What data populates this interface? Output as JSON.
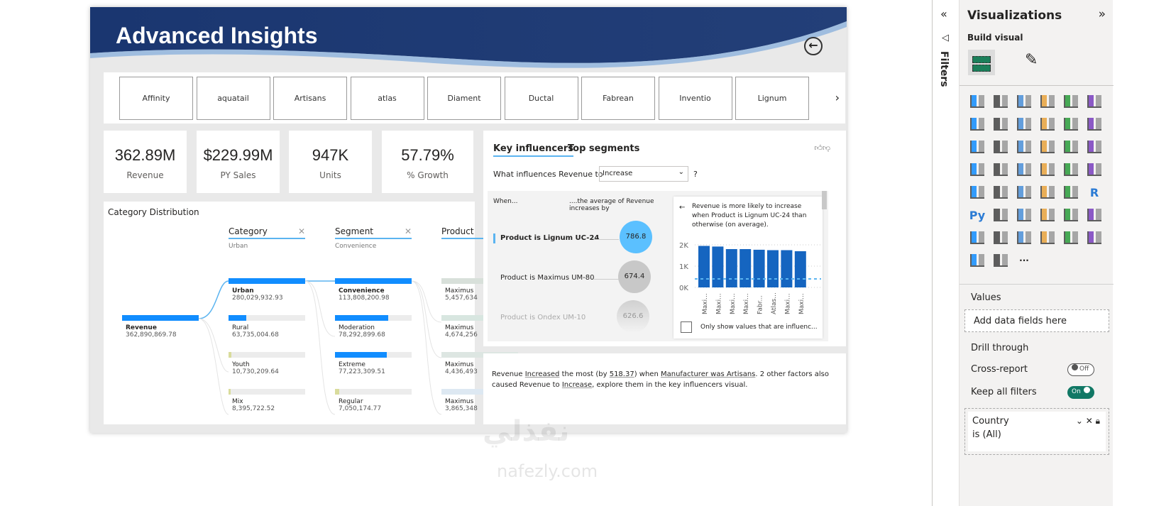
{
  "report": {
    "title": "Advanced Insights",
    "back_icon": "back-arrow-icon",
    "header_color": "#1f3a6e"
  },
  "logos": [
    "Affinity",
    "aquatail",
    "Artisans",
    "atlas",
    "Diament",
    "Ductal",
    "Fabrean",
    "Inventio",
    "Lignum"
  ],
  "kpis": [
    {
      "value": "362.89M",
      "label": "Revenue"
    },
    {
      "value": "$229.99M",
      "label": "PY Sales"
    },
    {
      "value": "947K",
      "label": "Units"
    },
    {
      "value": "57.79%",
      "label": "% Growth"
    }
  ],
  "decomp": {
    "title": "Category Distribution",
    "root": {
      "name": "Revenue",
      "value": "362,890,869.78"
    },
    "levels": [
      {
        "header": "Category",
        "selected": "Urban",
        "nodes": [
          {
            "name": "Urban",
            "value": "280,029,932.93",
            "pct": 100
          },
          {
            "name": "Rural",
            "value": "63,735,004.68",
            "pct": 23
          },
          {
            "name": "Youth",
            "value": "10,730,209.64",
            "pct": 4
          },
          {
            "name": "Mix",
            "value": "8,395,722.52",
            "pct": 3
          }
        ]
      },
      {
        "header": "Segment",
        "selected": "Convenience",
        "nodes": [
          {
            "name": "Convenience",
            "value": "113,808,200.98",
            "pct": 100
          },
          {
            "name": "Moderation",
            "value": "78,292,899.68",
            "pct": 69
          },
          {
            "name": "Extreme",
            "value": "77,223,309.51",
            "pct": 68
          },
          {
            "name": "Regular",
            "value": "7,050,174.77",
            "pct": 6
          }
        ]
      },
      {
        "header": "Product",
        "selected": "",
        "nodes": [
          {
            "name": "Maximus",
            "value": "5,457,634"
          },
          {
            "name": "Maximus",
            "value": "4,674,256"
          },
          {
            "name": "Maximus",
            "value": "4,436,493"
          },
          {
            "name": "Maximus",
            "value": "3,865,348"
          }
        ]
      }
    ]
  },
  "ki": {
    "tabs": [
      "Key influencers",
      "Top segments"
    ],
    "question": "What influences Revenue to",
    "dropdown": "Increase",
    "qmark": "?",
    "col_when": "When...",
    "col_avg": "....the average of Revenue increases by",
    "influencers": [
      {
        "label": "Product is Lignum UC-24",
        "value": "786.8"
      },
      {
        "label": "Product is Maximus UM-80",
        "value": "674.4"
      },
      {
        "label": "Product is Ondex UM-10",
        "value": "626.6"
      }
    ],
    "detail_text": "Revenue is more likely to increase when Product is Lignum UC-24 than otherwise (on average).",
    "checkbox_label": "Only show values that are influenc...",
    "chart_data": {
      "type": "bar",
      "categories": [
        "Maxi...",
        "Maxi...",
        "Maxi...",
        "Maxi...",
        "Fabr...",
        "Atlas...",
        "Maxi...",
        "Maxi..."
      ],
      "values": [
        1950,
        1920,
        1800,
        1800,
        1770,
        1750,
        1750,
        1700
      ],
      "yticks": [
        "2K",
        "1K",
        "0K"
      ],
      "ylim": [
        0,
        2000
      ],
      "average_line": 400,
      "bar_color": "#1565c0"
    }
  },
  "summary": {
    "p1": "Revenue ",
    "k1": "Increased",
    "p2": " the most (by ",
    "k2": "518.37",
    "p3": ") when ",
    "k3": "Manufacturer was Artisans",
    "p4": ". 2 other factors also caused Revenue to ",
    "k4": "Increase",
    "p5": ", explore them in the key influencers visual."
  },
  "filters": {
    "label": "Filters"
  },
  "viz": {
    "title": "Visualizations",
    "build": "Build visual",
    "values": "Values",
    "add_fields": "Add data fields here",
    "drill": "Drill through",
    "cross": "Cross-report",
    "cross_state": "Off",
    "keep": "Keep all filters",
    "keep_state": "On",
    "filter_field": "Country",
    "filter_value": "is (All)",
    "icons": [
      "stacked-bar",
      "stacked-column",
      "clustered-bar",
      "clustered-column",
      "100-bar",
      "100-column",
      "line",
      "area",
      "stacked-area",
      "line-stacked-column",
      "line-clustered-column",
      "ribbon",
      "waterfall",
      "funnel",
      "funnel-filter",
      "scatter",
      "pie",
      "donut",
      "treemap",
      "map",
      "filled-map",
      "azure-map",
      "gauge",
      "card",
      "multi-row-card",
      "kpi",
      "slicer",
      "table",
      "matrix",
      "r-visual",
      "python-visual",
      "key-influencers",
      "decomposition-tree",
      "qa",
      "smart-narrative",
      "metrics",
      "paginated",
      "power-apps-card",
      "power-apps-slicer",
      "power-apps-filter",
      "power-apps-table",
      "arcgis",
      "power-apps",
      "power-automate",
      "more"
    ]
  },
  "watermark": "nafezly.com"
}
